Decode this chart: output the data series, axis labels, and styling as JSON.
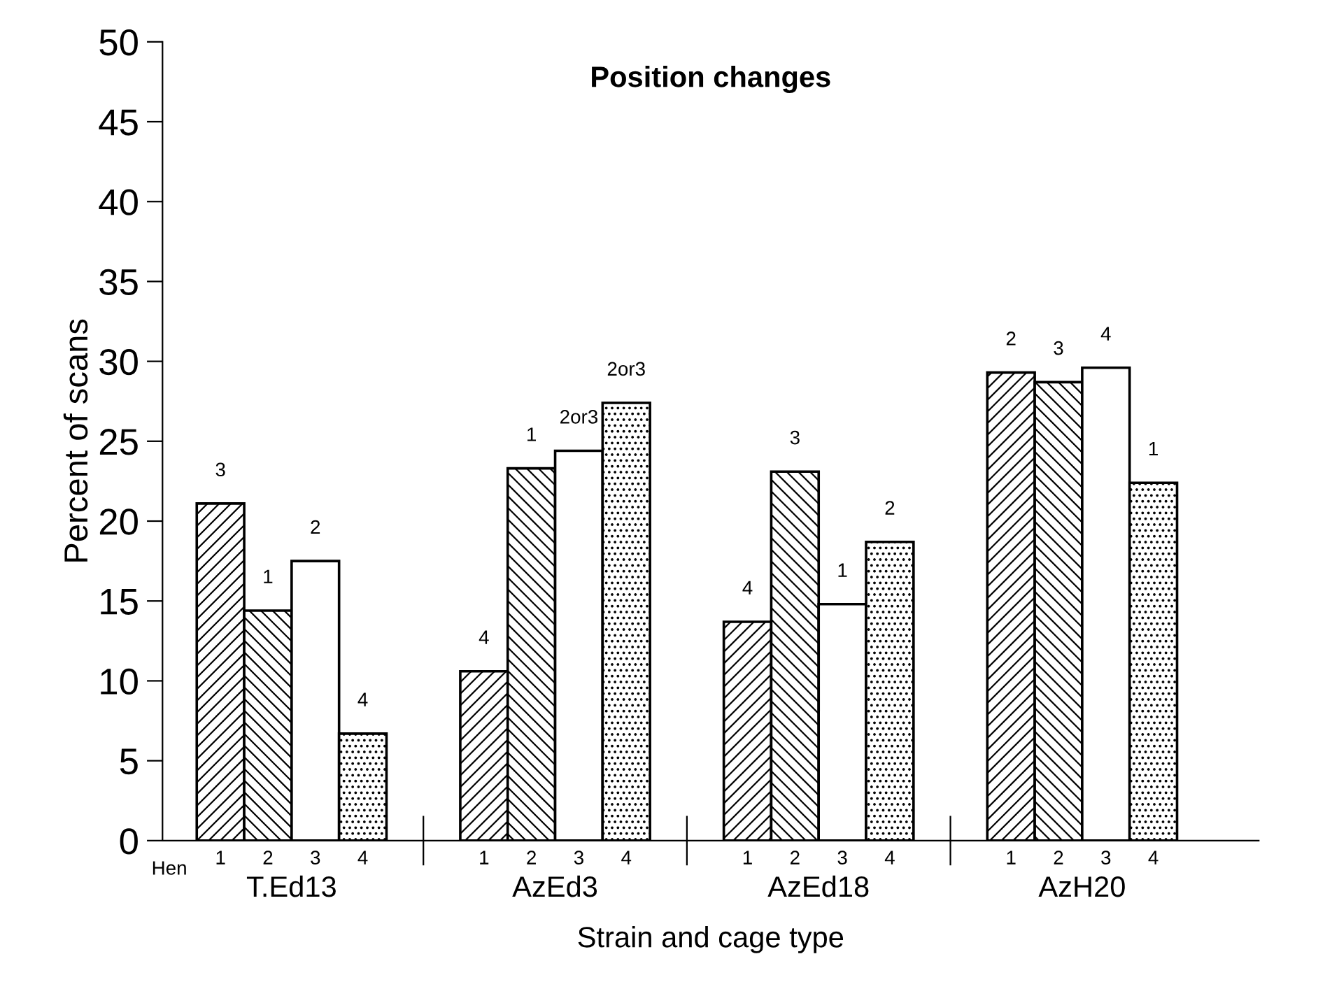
{
  "chart_data": {
    "type": "bar",
    "title": "Position changes",
    "xlabel": "Strain and cage type",
    "ylabel": "Percent of scans",
    "categories": [
      "T.Ed13",
      "AzEd3",
      "AzEd18",
      "AzH20"
    ],
    "series": [
      {
        "name": "1",
        "color": "#000000",
        "values": [
          21.1,
          10.6,
          13.7,
          29.3
        ]
      },
      {
        "name": "2",
        "color": "#000000",
        "values": [
          14.4,
          23.3,
          23.1,
          28.7
        ]
      },
      {
        "name": "3",
        "color": "#ffffff",
        "values": [
          17.5,
          24.4,
          14.8,
          29.6
        ]
      },
      {
        "name": "4",
        "color": "#000000",
        "values": [
          6.7,
          27.4,
          18.7,
          22.4
        ]
      }
    ],
    "annotations": [
      "Hen",
      "3",
      "1",
      "2",
      "4",
      "4",
      "1",
      "2or3",
      "2or3",
      "4",
      "3",
      "1",
      "2",
      "2",
      "3",
      "4",
      "1"
    ],
    "ylim": [
      0,
      50
    ],
    "yticks": [
      0,
      5,
      10,
      15,
      20,
      25,
      30,
      35,
      40,
      45,
      50
    ],
    "grid": false,
    "legend": false
  }
}
